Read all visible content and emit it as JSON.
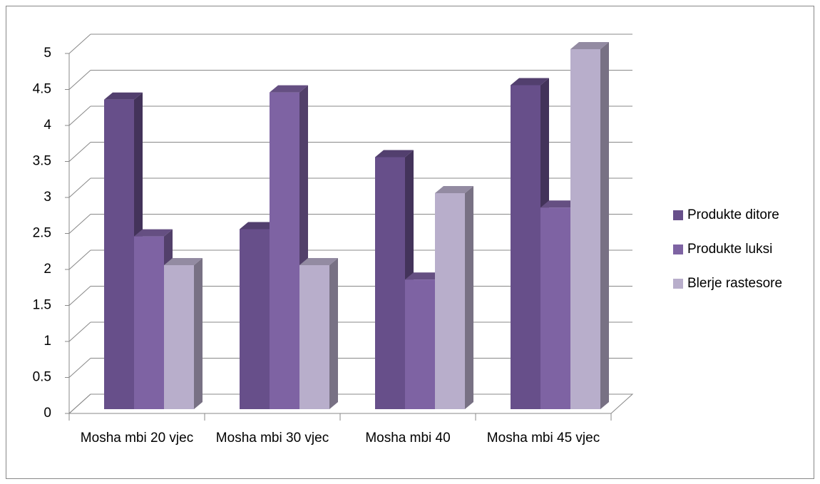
{
  "chart_data": {
    "type": "bar3d",
    "categories": [
      "Mosha mbi 20 vjec",
      "Mosha mbi 30 vjec",
      "Mosha mbi 40",
      "Mosha mbi 45 vjec"
    ],
    "series": [
      {
        "name": "Produkte ditore",
        "color": "#674f8a",
        "values": [
          4.3,
          2.5,
          3.5,
          4.5
        ]
      },
      {
        "name": "Produkte luksi",
        "color": "#7e63a3",
        "values": [
          2.4,
          4.4,
          1.8,
          2.8
        ]
      },
      {
        "name": "Blerje rastesore",
        "color": "#b8aecb",
        "values": [
          2.0,
          2.0,
          3.0,
          5.0
        ]
      }
    ],
    "ylim": [
      0,
      5
    ],
    "yticks": [
      0,
      0.5,
      1,
      1.5,
      2,
      2.5,
      3,
      3.5,
      4,
      4.5,
      5
    ],
    "grid": true,
    "legend": "right"
  }
}
